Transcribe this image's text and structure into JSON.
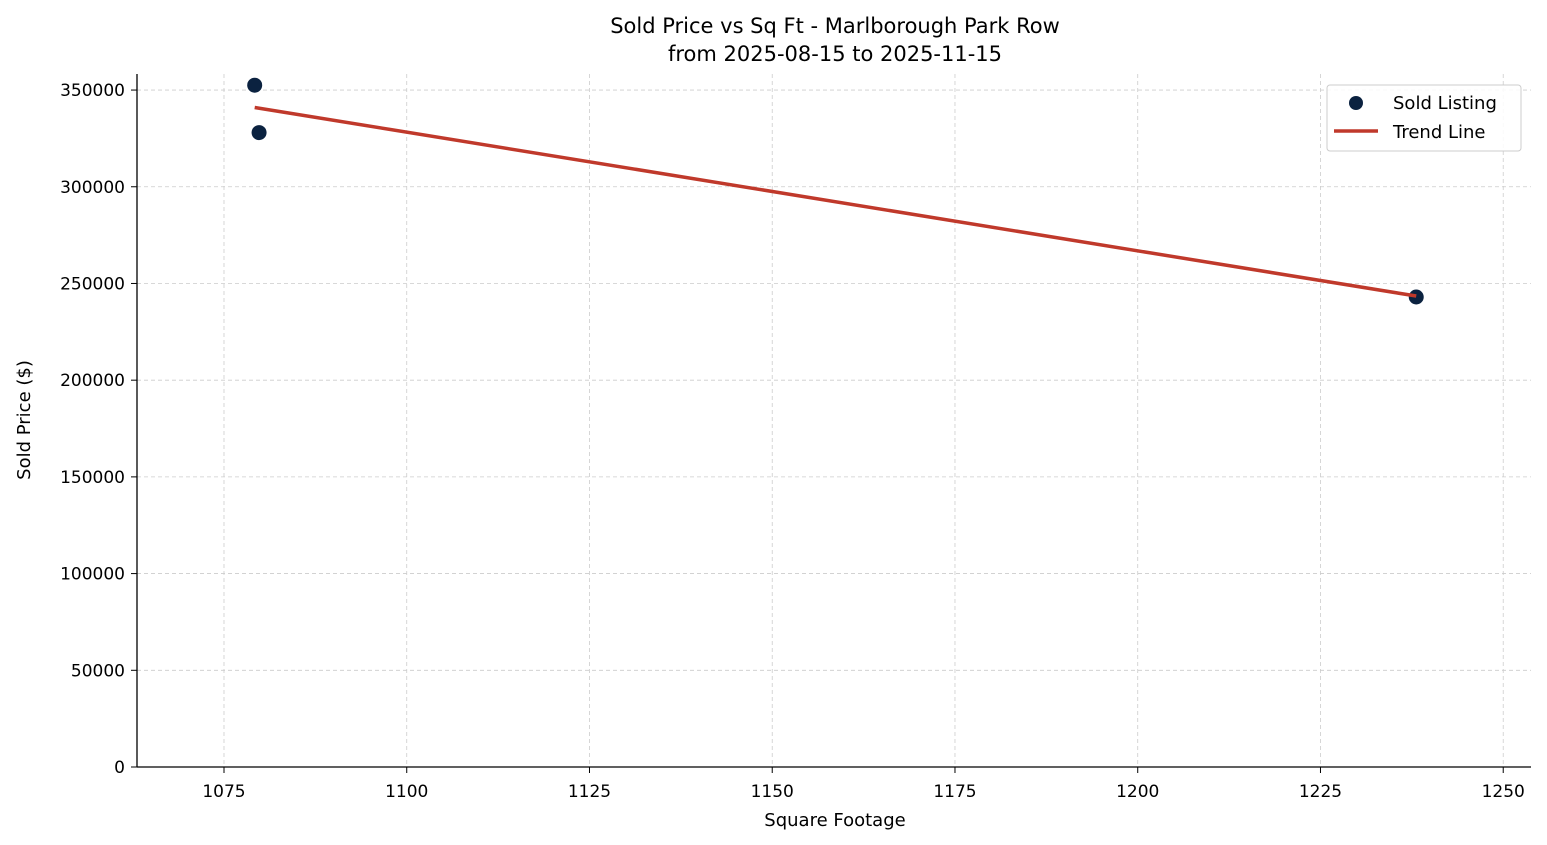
{
  "chart_data": {
    "type": "scatter",
    "title": "Sold Price vs Sq Ft - Marlborough Park Row",
    "subtitle": "from 2025-08-15 to 2025-11-15",
    "xlabel": "Square Footage",
    "ylabel": "Sold Price ($)",
    "xlim": [
      1063.1,
      1253.8
    ],
    "ylim": [
      0,
      358300
    ],
    "xticks": [
      1075,
      1100,
      1125,
      1150,
      1175,
      1200,
      1225,
      1250
    ],
    "yticks": [
      0,
      50000,
      100000,
      150000,
      200000,
      250000,
      300000,
      350000
    ],
    "grid": true,
    "legend_position": "top-right",
    "series": [
      {
        "name": "Sold Listing",
        "type": "scatter",
        "color": "#0b2240",
        "points": [
          [
            1079.2,
            352500
          ],
          [
            1079.8,
            328000
          ],
          [
            1238.1,
            243000
          ]
        ]
      },
      {
        "name": "Trend Line",
        "type": "line",
        "color": "#c0392b",
        "points": [
          [
            1079.2,
            341000
          ],
          [
            1238.1,
            243500
          ]
        ]
      }
    ]
  }
}
